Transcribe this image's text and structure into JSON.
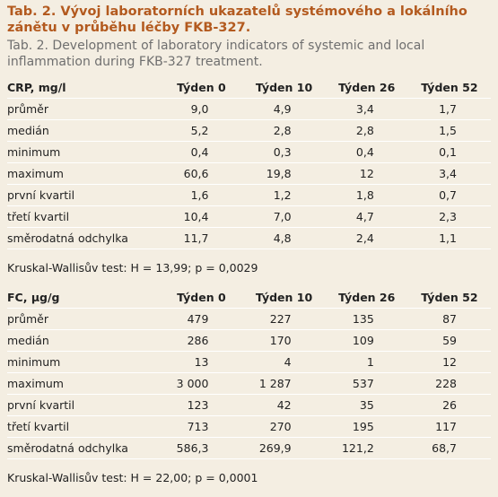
{
  "header": {
    "title": "Tab. 2. Vývoj laboratorních ukazatelů systémového a lokálního zánětu v průběhu léčby FKB-327.",
    "subtitle": "Tab. 2. Development of laboratory indicators of systemic and local inflammation during FKB-327 treatment."
  },
  "tables": [
    {
      "columns": [
        "CRP, mg/l",
        "Týden 0",
        "Týden 10",
        "Týden 26",
        "Týden 52"
      ],
      "rows": [
        [
          "průměr",
          "9,0",
          "4,9",
          "3,4",
          "1,7"
        ],
        [
          "medián",
          "5,2",
          "2,8",
          "2,8",
          "1,5"
        ],
        [
          "minimum",
          "0,4",
          "0,3",
          "0,4",
          "0,1"
        ],
        [
          "maximum",
          "60,6",
          "19,8",
          "12",
          "3,4"
        ],
        [
          "první kvartil",
          "1,6",
          "1,2",
          "1,8",
          "0,7"
        ],
        [
          "třetí kvartil",
          "10,4",
          "7,0",
          "4,7",
          "2,3"
        ],
        [
          "směrodatná odchylka",
          "11,7",
          "4,8",
          "2,4",
          "1,1"
        ]
      ],
      "note": "Kruskal-Wallisův test: H = 13,99; p = 0,0029"
    },
    {
      "columns": [
        "FC, µg/g",
        "Týden 0",
        "Týden 10",
        "Týden 26",
        "Týden 52"
      ],
      "rows": [
        [
          "průměr",
          "479",
          "227",
          "135",
          "87"
        ],
        [
          "medián",
          "286",
          "170",
          "109",
          "59"
        ],
        [
          "minimum",
          "13",
          "4",
          "1",
          "12"
        ],
        [
          "maximum",
          "3 000",
          "1 287",
          "537",
          "228"
        ],
        [
          "první kvartil",
          "123",
          "42",
          "35",
          "26"
        ],
        [
          "třetí kvartil",
          "713",
          "270",
          "195",
          "117"
        ],
        [
          "směrodatná odchylka",
          "586,3",
          "269,9",
          "121,2",
          "68,7"
        ]
      ],
      "note": "Kruskal-Wallisův test: H = 22,00; p = 0,0001"
    }
  ]
}
